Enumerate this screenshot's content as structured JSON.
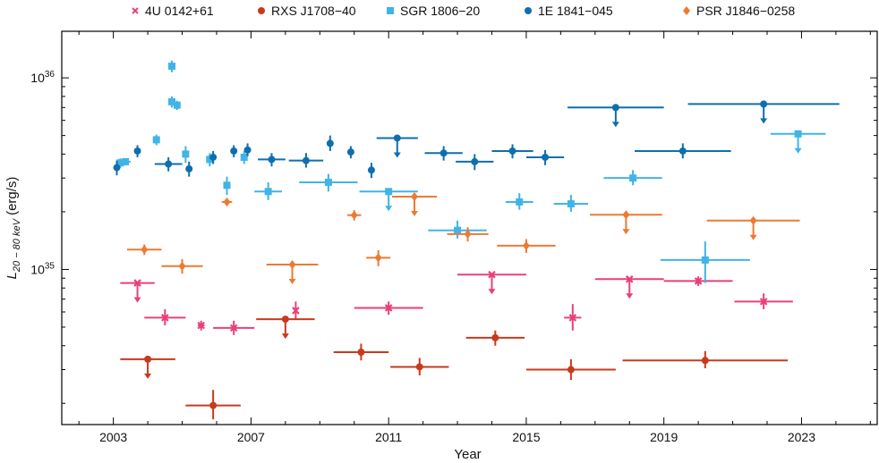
{
  "chart_data": {
    "type": "scatter",
    "xlabel": "Year",
    "ylabel": "L",
    "ylabel_sub": "20 − 80 keV",
    "ylabel_unit": " (erg/s)",
    "xlim": [
      2001.5,
      2025.2
    ],
    "ylim": [
      1.55e+34,
      1.75e+36
    ],
    "yscale": "log",
    "xticks": [
      2003,
      2007,
      2011,
      2015,
      2019,
      2023
    ],
    "xtick_labels": [
      "2003",
      "2007",
      "2011",
      "2015",
      "2019",
      "2023"
    ],
    "yticks": [
      1e+35,
      1e+36
    ],
    "ytick_base": "10",
    "ytick_exps": [
      "35",
      "36"
    ],
    "series": [
      {
        "name": "4U 0142+61",
        "color": "#e8407a",
        "marker": "x",
        "points": [
          {
            "x": 2003.7,
            "xerr": 0.5,
            "y": 8.5e+34,
            "upper_limit": true
          },
          {
            "x": 2004.5,
            "xerr": 0.6,
            "y": 5.6e+34,
            "yerr": [
              5e+33,
              6e+33
            ]
          },
          {
            "x": 2005.55,
            "xerr": 0.1,
            "y": 5.1e+34,
            "yerr": [
              3e+33,
              3e+33
            ]
          },
          {
            "x": 2006.5,
            "xerr": 0.6,
            "y": 4.95e+34,
            "yerr": [
              4e+33,
              4.5e+33
            ]
          },
          {
            "x": 2008.3,
            "xerr": 0.05,
            "y": 6.1e+34,
            "yerr": [
              6e+33,
              7e+33
            ]
          },
          {
            "x": 2011.0,
            "xerr": 1.0,
            "y": 6.3e+34,
            "yerr": [
              5e+33,
              5e+33
            ]
          },
          {
            "x": 2014.0,
            "xerr": 1.0,
            "y": 9.4e+34,
            "upper_limit": true
          },
          {
            "x": 2016.35,
            "xerr": 0.25,
            "y": 5.6e+34,
            "yerr": [
              8e+33,
              1e+34
            ]
          },
          {
            "x": 2018.0,
            "xerr": 1.0,
            "y": 8.9e+34,
            "upper_limit": true
          },
          {
            "x": 2020.0,
            "xerr": 1.0,
            "y": 8.7e+34,
            "yerr": [
              5e+33,
              5e+33
            ]
          },
          {
            "x": 2021.9,
            "xerr": 0.85,
            "y": 6.8e+34,
            "yerr": [
              6e+33,
              7e+33
            ]
          }
        ]
      },
      {
        "name": "RXS J1708−40",
        "color": "#c83a1c",
        "marker": "circle",
        "points": [
          {
            "x": 2004.0,
            "xerr": 0.8,
            "y": 3.4e+34,
            "upper_limit": true
          },
          {
            "x": 2005.9,
            "xerr": 0.8,
            "y": 1.95e+34,
            "yerr": [
              3e+33,
              4e+33
            ]
          },
          {
            "x": 2008.0,
            "xerr": 0.85,
            "y": 5.5e+34,
            "upper_limit": true
          },
          {
            "x": 2010.2,
            "xerr": 0.8,
            "y": 3.7e+34,
            "yerr": [
              3.5e+33,
              4e+33
            ]
          },
          {
            "x": 2011.9,
            "xerr": 0.85,
            "y": 3.1e+34,
            "yerr": [
              3e+33,
              3.5e+33
            ]
          },
          {
            "x": 2014.1,
            "xerr": 0.85,
            "y": 4.4e+34,
            "yerr": [
              4e+33,
              4e+33
            ]
          },
          {
            "x": 2016.3,
            "xerr": 1.3,
            "y": 3e+34,
            "yerr": [
              3.5e+33,
              4e+33
            ]
          },
          {
            "x": 2020.2,
            "xerr": 2.4,
            "y": 3.35e+34,
            "yerr": [
              3e+33,
              4e+33
            ]
          }
        ]
      },
      {
        "name": "SGR 1806−20",
        "color": "#40b4e6",
        "marker": "square",
        "points": [
          {
            "x": 2003.2,
            "xerr": 0.04,
            "y": 3.6e+35,
            "yerr": [
              2e+34,
              2e+34
            ]
          },
          {
            "x": 2003.35,
            "xerr": 0.15,
            "y": 3.65e+35,
            "yerr": [
              1.5e+34,
              1.5e+34
            ]
          },
          {
            "x": 2004.25,
            "xerr": 0.1,
            "y": 4.75e+35,
            "yerr": [
              3e+34,
              3e+34
            ]
          },
          {
            "x": 2004.7,
            "xerr": 0.05,
            "y": 1.15e+36,
            "yerr": [
              8e+34,
              8e+34
            ]
          },
          {
            "x": 2004.7,
            "xerr": 0.05,
            "y": 7.5e+35,
            "yerr": [
              5e+34,
              5e+34
            ]
          },
          {
            "x": 2004.85,
            "xerr": 0.05,
            "y": 7.2e+35,
            "yerr": [
              4e+34,
              4e+34
            ]
          },
          {
            "x": 2005.1,
            "xerr": 0.05,
            "y": 4e+35,
            "yerr": [
              4e+34,
              4e+34
            ]
          },
          {
            "x": 2005.8,
            "xerr": 0.05,
            "y": 3.75e+35,
            "yerr": [
              3e+34,
              3e+34
            ]
          },
          {
            "x": 2006.3,
            "xerr": 0.05,
            "y": 2.75e+35,
            "yerr": [
              3e+34,
              3e+34
            ]
          },
          {
            "x": 2006.8,
            "xerr": 0.05,
            "y": 3.85e+35,
            "yerr": [
              3e+34,
              3e+34
            ]
          },
          {
            "x": 2007.5,
            "xerr": 0.4,
            "y": 2.55e+35,
            "yerr": [
              2.5e+34,
              3e+34
            ]
          },
          {
            "x": 2009.25,
            "xerr": 0.85,
            "y": 2.85e+35,
            "yerr": [
              3e+34,
              3e+34
            ]
          },
          {
            "x": 2011.0,
            "xerr": 0.85,
            "y": 2.55e+35,
            "upper_limit": true
          },
          {
            "x": 2013.0,
            "xerr": 0.85,
            "y": 1.6e+35,
            "yerr": [
              1.5e+34,
              2e+34
            ]
          },
          {
            "x": 2014.8,
            "xerr": 0.4,
            "y": 2.25e+35,
            "yerr": [
              2e+34,
              2.5e+34
            ]
          },
          {
            "x": 2016.3,
            "xerr": 0.5,
            "y": 2.2e+35,
            "yerr": [
              2e+34,
              2.5e+34
            ]
          },
          {
            "x": 2018.1,
            "xerr": 0.85,
            "y": 3e+35,
            "yerr": [
              2.5e+34,
              3e+34
            ]
          },
          {
            "x": 2020.2,
            "xerr": 1.3,
            "y": 1.12e+35,
            "yerr": [
              2.7e+34,
              2.8e+34
            ]
          },
          {
            "x": 2022.9,
            "xerr": 0.8,
            "y": 5.1e+35,
            "upper_limit": true
          }
        ]
      },
      {
        "name": "1E 1841−045",
        "color": "#0e6fae",
        "marker": "circle",
        "points": [
          {
            "x": 2003.1,
            "xerr": 0.05,
            "y": 3.4e+35,
            "yerr": [
              3e+34,
              3e+34
            ]
          },
          {
            "x": 2003.7,
            "xerr": 0.05,
            "y": 4.15e+35,
            "yerr": [
              3e+34,
              3e+34
            ]
          },
          {
            "x": 2004.6,
            "xerr": 0.4,
            "y": 3.55e+35,
            "yerr": [
              3e+34,
              3e+34
            ]
          },
          {
            "x": 2005.2,
            "xerr": 0.05,
            "y": 3.35e+35,
            "yerr": [
              3e+34,
              3e+34
            ]
          },
          {
            "x": 2005.9,
            "xerr": 0.05,
            "y": 3.85e+35,
            "yerr": [
              3e+34,
              3e+34
            ]
          },
          {
            "x": 2006.5,
            "xerr": 0.05,
            "y": 4.15e+35,
            "yerr": [
              3e+34,
              3e+34
            ]
          },
          {
            "x": 2006.9,
            "xerr": 0.05,
            "y": 4.2e+35,
            "yerr": [
              3e+34,
              3.5e+34
            ]
          },
          {
            "x": 2007.6,
            "xerr": 0.4,
            "y": 3.75e+35,
            "yerr": [
              3e+34,
              3e+34
            ]
          },
          {
            "x": 2008.6,
            "xerr": 0.5,
            "y": 3.7e+35,
            "yerr": [
              3e+34,
              3.5e+34
            ]
          },
          {
            "x": 2009.3,
            "xerr": 0.05,
            "y": 4.55e+35,
            "yerr": [
              4e+34,
              4.5e+34
            ]
          },
          {
            "x": 2009.9,
            "xerr": 0.05,
            "y": 4.1e+35,
            "yerr": [
              3e+34,
              3e+34
            ]
          },
          {
            "x": 2010.5,
            "xerr": 0.05,
            "y": 3.3e+35,
            "yerr": [
              3e+34,
              3e+34
            ]
          },
          {
            "x": 2011.25,
            "xerr": 0.6,
            "y": 4.85e+35,
            "upper_limit": true
          },
          {
            "x": 2012.6,
            "xerr": 0.55,
            "y": 4.05e+35,
            "yerr": [
              3.5e+34,
              3.5e+34
            ]
          },
          {
            "x": 2013.5,
            "xerr": 0.55,
            "y": 3.65e+35,
            "yerr": [
              3.5e+34,
              3.5e+34
            ]
          },
          {
            "x": 2014.6,
            "xerr": 0.6,
            "y": 4.15e+35,
            "yerr": [
              3.5e+34,
              3.5e+34
            ]
          },
          {
            "x": 2015.55,
            "xerr": 0.55,
            "y": 3.85e+35,
            "yerr": [
              3.5e+34,
              3.5e+34
            ]
          },
          {
            "x": 2017.6,
            "xerr": 1.4,
            "y": 7e+35,
            "upper_limit": true
          },
          {
            "x": 2019.55,
            "xerr": 1.4,
            "y": 4.15e+35,
            "yerr": [
              3.5e+34,
              4e+34
            ]
          },
          {
            "x": 2021.9,
            "xerr": 2.2,
            "y": 7.3e+35,
            "upper_limit": true
          }
        ]
      },
      {
        "name": "PSR J1846−0258",
        "color": "#ec7a32",
        "marker": "diamond",
        "points": [
          {
            "x": 2003.9,
            "xerr": 0.5,
            "y": 1.27e+35,
            "yerr": [
              8e+33,
              8e+33
            ]
          },
          {
            "x": 2005.0,
            "xerr": 0.6,
            "y": 1.04e+35,
            "yerr": [
              9e+33,
              9e+33
            ]
          },
          {
            "x": 2006.3,
            "xerr": 0.15,
            "y": 2.25e+35,
            "yerr": [
              1e+34,
              1e+34
            ]
          },
          {
            "x": 2008.2,
            "xerr": 0.75,
            "y": 1.06e+35,
            "upper_limit": true
          },
          {
            "x": 2010.0,
            "xerr": 0.2,
            "y": 1.92e+35,
            "yerr": [
              1.2e+34,
              1.2e+34
            ]
          },
          {
            "x": 2010.7,
            "xerr": 0.35,
            "y": 1.15e+35,
            "yerr": [
              1.1e+34,
              1.1e+34
            ]
          },
          {
            "x": 2011.75,
            "xerr": 0.65,
            "y": 2.4e+35,
            "upper_limit": true
          },
          {
            "x": 2013.3,
            "xerr": 0.6,
            "y": 1.53e+35,
            "yerr": [
              1.3e+34,
              1.3e+34
            ]
          },
          {
            "x": 2015.0,
            "xerr": 0.85,
            "y": 1.33e+35,
            "yerr": [
              1.1e+34,
              1.1e+34
            ]
          },
          {
            "x": 2017.9,
            "xerr": 1.05,
            "y": 1.93e+35,
            "upper_limit": true
          },
          {
            "x": 2021.6,
            "xerr": 1.35,
            "y": 1.8e+35,
            "upper_limit": true
          }
        ]
      }
    ]
  }
}
